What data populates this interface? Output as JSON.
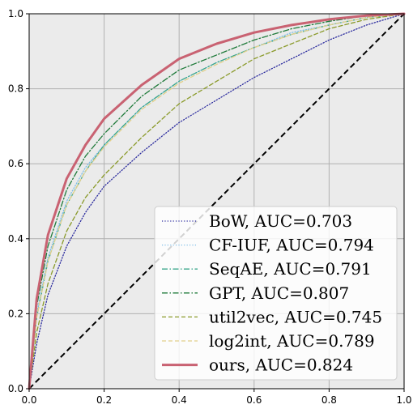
{
  "chart_data": {
    "type": "line",
    "xlim": [
      0.0,
      1.0
    ],
    "ylim": [
      0.0,
      1.0
    ],
    "grid": true,
    "legend_position": "bottom-right",
    "x_ticks": [
      "0.0",
      "0.2",
      "0.4",
      "0.6",
      "0.8",
      "1.0"
    ],
    "y_ticks": [
      "0.0",
      "0.2",
      "0.4",
      "0.6",
      "0.8",
      "1.0"
    ],
    "diagonal": {
      "x": [
        0,
        1
      ],
      "y": [
        0,
        1
      ],
      "color": "#000000",
      "style": "dashed"
    },
    "series": [
      {
        "name": "BoW, AUC=0.703",
        "color": "#2b2b9e",
        "style": "dotted",
        "x": [
          0,
          0.02,
          0.05,
          0.1,
          0.15,
          0.2,
          0.3,
          0.4,
          0.5,
          0.6,
          0.7,
          0.8,
          0.9,
          1.0
        ],
        "y": [
          0,
          0.12,
          0.25,
          0.38,
          0.47,
          0.54,
          0.63,
          0.71,
          0.77,
          0.83,
          0.88,
          0.93,
          0.97,
          1.0
        ]
      },
      {
        "name": "CF-IUF, AUC=0.794",
        "color": "#7fbfe8",
        "style": "dotted",
        "x": [
          0,
          0.02,
          0.05,
          0.1,
          0.15,
          0.2,
          0.3,
          0.4,
          0.5,
          0.6,
          0.7,
          0.8,
          0.9,
          1.0
        ],
        "y": [
          0,
          0.2,
          0.35,
          0.5,
          0.59,
          0.65,
          0.75,
          0.82,
          0.87,
          0.91,
          0.95,
          0.97,
          0.99,
          1.0
        ]
      },
      {
        "name": "SeqAE, AUC=0.791",
        "color": "#3aa68a",
        "style": "dashdot",
        "x": [
          0,
          0.02,
          0.05,
          0.1,
          0.15,
          0.2,
          0.3,
          0.4,
          0.5,
          0.6,
          0.7,
          0.8,
          0.9,
          1.0
        ],
        "y": [
          0,
          0.19,
          0.34,
          0.49,
          0.58,
          0.65,
          0.75,
          0.82,
          0.87,
          0.91,
          0.945,
          0.97,
          0.99,
          1.0
        ]
      },
      {
        "name": "GPT, AUC=0.807",
        "color": "#1f7a3a",
        "style": "dashdot",
        "x": [
          0,
          0.02,
          0.05,
          0.1,
          0.15,
          0.2,
          0.3,
          0.4,
          0.5,
          0.6,
          0.7,
          0.8,
          0.9,
          1.0
        ],
        "y": [
          0,
          0.22,
          0.38,
          0.53,
          0.62,
          0.68,
          0.78,
          0.85,
          0.89,
          0.93,
          0.96,
          0.98,
          0.995,
          1.0
        ]
      },
      {
        "name": "util2vec, AUC=0.745",
        "color": "#8a9a2a",
        "style": "dashed",
        "x": [
          0,
          0.02,
          0.05,
          0.1,
          0.15,
          0.2,
          0.3,
          0.4,
          0.5,
          0.6,
          0.7,
          0.8,
          0.9,
          1.0
        ],
        "y": [
          0,
          0.15,
          0.28,
          0.42,
          0.51,
          0.57,
          0.67,
          0.76,
          0.82,
          0.88,
          0.92,
          0.96,
          0.985,
          1.0
        ]
      },
      {
        "name": "log2int, AUC=0.789",
        "color": "#e3d08a",
        "style": "dashed",
        "x": [
          0,
          0.02,
          0.05,
          0.1,
          0.15,
          0.2,
          0.3,
          0.4,
          0.5,
          0.6,
          0.7,
          0.8,
          0.9,
          1.0
        ],
        "y": [
          0,
          0.19,
          0.34,
          0.49,
          0.58,
          0.645,
          0.745,
          0.815,
          0.865,
          0.91,
          0.945,
          0.97,
          0.99,
          1.0
        ]
      },
      {
        "name": "ours, AUC=0.824",
        "color": "#c96272",
        "style": "solid",
        "x": [
          0,
          0.02,
          0.05,
          0.1,
          0.15,
          0.2,
          0.3,
          0.4,
          0.5,
          0.6,
          0.7,
          0.8,
          0.9,
          1.0
        ],
        "y": [
          0,
          0.24,
          0.41,
          0.56,
          0.65,
          0.72,
          0.81,
          0.88,
          0.92,
          0.95,
          0.97,
          0.985,
          0.995,
          1.0
        ]
      }
    ]
  }
}
